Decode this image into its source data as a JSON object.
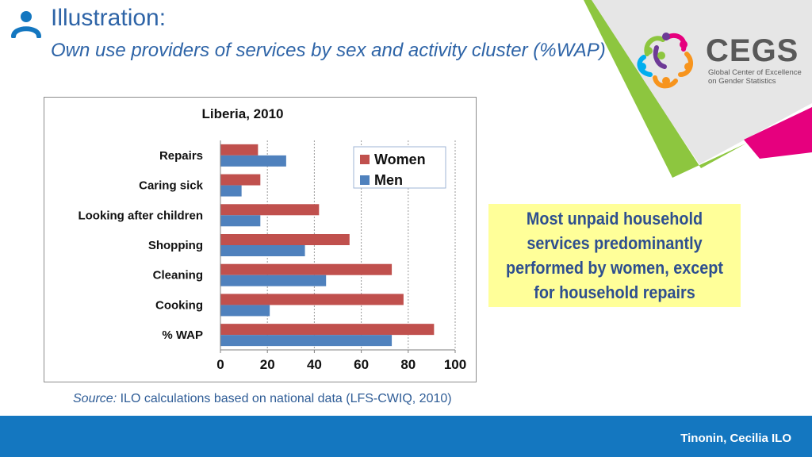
{
  "header": {
    "title": "Illustration:",
    "subtitle": "Own use providers of services by sex and activity cluster (%WAP)"
  },
  "logo": {
    "name": "CEGS",
    "subtitle_line1": "Global Center of Excellence",
    "subtitle_line2": "on Gender Statistics"
  },
  "callout": {
    "text": "Most unpaid household services predominantly performed by women, except for household repairs"
  },
  "source": {
    "label": "Source:",
    "text": "ILO calculations based on national data (LFS-CWIQ, 2010)"
  },
  "footer": {
    "author": "Tinonin, Cecilia ILO"
  },
  "colors": {
    "women": "#C0504D",
    "men": "#4F81BD",
    "accent_blue": "#1477C0",
    "accent_green": "#8DC63F",
    "accent_magenta": "#E6007E",
    "callout_bg": "#FFFF99"
  },
  "chart_data": {
    "type": "bar",
    "orientation": "horizontal",
    "title": "Liberia, 2010",
    "categories": [
      "Repairs",
      "Caring sick",
      "Looking after children",
      "Shopping",
      "Cleaning",
      "Cooking",
      "% WAP"
    ],
    "series": [
      {
        "name": "Women",
        "values": [
          16,
          17,
          42,
          55,
          73,
          78,
          91
        ]
      },
      {
        "name": "Men",
        "values": [
          28,
          9,
          17,
          36,
          45,
          21,
          73
        ]
      }
    ],
    "xlim": [
      0,
      100
    ],
    "xticks": [
      0,
      20,
      40,
      60,
      80,
      100
    ],
    "grid": "vertical-dashed",
    "legend_position": "top-right"
  }
}
